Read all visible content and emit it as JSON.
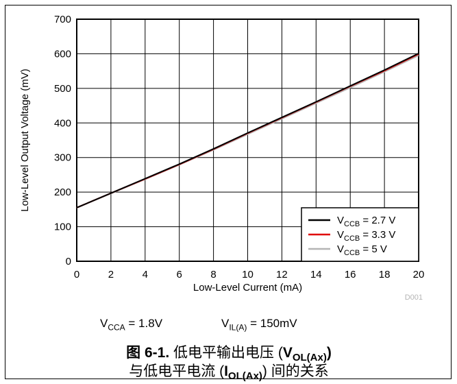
{
  "chart_data": {
    "type": "line",
    "xlabel": "Low-Level Current (mA)",
    "ylabel": "Low-Level Output Voltage (mV)",
    "xlim": [
      0,
      20
    ],
    "ylim": [
      0,
      700
    ],
    "xticks": [
      "0",
      "2",
      "4",
      "6",
      "8",
      "10",
      "12",
      "14",
      "16",
      "18",
      "20"
    ],
    "yticks": [
      "0",
      "100",
      "200",
      "300",
      "400",
      "500",
      "600",
      "700"
    ],
    "grid": true,
    "legend_position": "bottom-right",
    "series": [
      {
        "name": "2.7 V",
        "color": "#000000",
        "x": [
          0,
          2,
          4,
          6,
          8,
          10,
          12,
          14,
          16,
          18,
          20
        ],
        "y": [
          155,
          197,
          239,
          281,
          325,
          371,
          416,
          461,
          507,
          553,
          601
        ]
      },
      {
        "name": "3.3 V",
        "color": "#e00000",
        "x": [
          0,
          2,
          4,
          6,
          8,
          10,
          12,
          14,
          16,
          18,
          20
        ],
        "y": [
          155,
          197,
          238,
          280,
          324,
          370,
          415,
          460,
          506,
          551,
          599
        ]
      },
      {
        "name": "5 V",
        "color": "#b4b4b4",
        "x": [
          0,
          2,
          4,
          6,
          8,
          10,
          12,
          14,
          16,
          18,
          20
        ],
        "y": [
          154,
          196,
          237,
          279,
          322,
          367,
          412,
          457,
          502,
          548,
          595
        ]
      }
    ],
    "legend_prefix": {
      "main": "V",
      "sub": "CCB",
      "sep": " = "
    },
    "code": "D001"
  },
  "conditions": [
    {
      "main": "V",
      "sub": "CCA",
      "rest": " = 1.8V"
    },
    {
      "main": "V",
      "sub": "IL(A)",
      "rest": " = 150mV"
    }
  ],
  "caption": {
    "line1": {
      "prefix": "图 6-1. ",
      "text": "低电平输出电压 (",
      "v": "V",
      "vsub": "OL(Ax)",
      "close": ")"
    },
    "line2": {
      "text": "与低电平电流 (",
      "i": "I",
      "isub": "OL(Ax)",
      "close": ") 间的关系"
    }
  }
}
